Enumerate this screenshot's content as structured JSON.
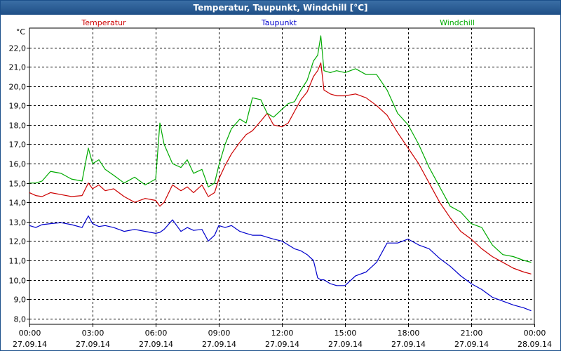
{
  "window": {
    "title": "Temperatur, Taupunkt, Windchill [°C]"
  },
  "chart_data": {
    "type": "line",
    "title": "Temperatur, Taupunkt, Windchill [°C]",
    "ylabel": "°C",
    "ylim": [
      7.7,
      23.0
    ],
    "yticks": [
      "8,0",
      "9,0",
      "10,0",
      "11,0",
      "12,0",
      "13,0",
      "14,0",
      "15,0",
      "16,0",
      "17,0",
      "18,0",
      "19,0",
      "20,0",
      "21,0",
      "22,0"
    ],
    "xlim": [
      0,
      24
    ],
    "xticks": [
      {
        "time": "00:00",
        "date": "27.09.14"
      },
      {
        "time": "03:00",
        "date": "27.09.14"
      },
      {
        "time": "06:00",
        "date": "27.09.14"
      },
      {
        "time": "09:00",
        "date": "27.09.14"
      },
      {
        "time": "12:00",
        "date": "27.09.14"
      },
      {
        "time": "15:00",
        "date": "27.09.14"
      },
      {
        "time": "18:00",
        "date": "27.09.14"
      },
      {
        "time": "21:00",
        "date": "27.09.14"
      },
      {
        "time": "00:00",
        "date": "28.09.14"
      }
    ],
    "grid": true,
    "legend_placement": "top",
    "series": [
      {
        "name": "Temperatur",
        "color": "#cc0000",
        "x": [
          0.0,
          0.3,
          0.6,
          1.0,
          1.5,
          2.0,
          2.5,
          2.8,
          3.0,
          3.3,
          3.6,
          4.0,
          4.5,
          5.0,
          5.5,
          6.0,
          6.2,
          6.4,
          6.8,
          7.2,
          7.5,
          7.8,
          8.2,
          8.5,
          8.8,
          9.0,
          9.3,
          9.6,
          10.0,
          10.3,
          10.6,
          11.0,
          11.3,
          11.6,
          12.0,
          12.3,
          12.6,
          12.9,
          13.2,
          13.5,
          13.7,
          13.85,
          14.0,
          14.3,
          14.6,
          15.0,
          15.5,
          16.0,
          16.5,
          17.0,
          17.5,
          18.0,
          18.5,
          19.0,
          19.5,
          20.0,
          20.5,
          21.0,
          21.5,
          22.0,
          22.5,
          23.0,
          23.5,
          23.85
        ],
        "values": [
          14.5,
          14.35,
          14.3,
          14.5,
          14.4,
          14.3,
          14.35,
          15.0,
          14.7,
          14.9,
          14.6,
          14.7,
          14.3,
          14.0,
          14.2,
          14.1,
          13.8,
          14.0,
          14.9,
          14.6,
          14.8,
          14.5,
          14.9,
          14.3,
          14.5,
          15.2,
          15.9,
          16.5,
          17.1,
          17.5,
          17.7,
          18.2,
          18.6,
          18.0,
          17.9,
          18.1,
          18.7,
          19.3,
          19.7,
          20.5,
          20.8,
          21.2,
          19.8,
          19.6,
          19.5,
          19.5,
          19.6,
          19.4,
          19.0,
          18.5,
          17.6,
          16.8,
          16.0,
          15.0,
          14.0,
          13.2,
          12.5,
          12.1,
          11.6,
          11.2,
          10.9,
          10.6,
          10.4,
          10.3
        ]
      },
      {
        "name": "Taupunkt",
        "color": "#0000cc",
        "x": [
          0.0,
          0.3,
          0.6,
          1.0,
          1.5,
          2.0,
          2.5,
          2.8,
          3.0,
          3.3,
          3.6,
          4.0,
          4.5,
          5.0,
          5.5,
          6.0,
          6.2,
          6.4,
          6.8,
          7.2,
          7.5,
          7.8,
          8.2,
          8.5,
          8.8,
          9.0,
          9.3,
          9.6,
          10.0,
          10.3,
          10.6,
          11.0,
          11.3,
          11.6,
          12.0,
          12.3,
          12.6,
          12.9,
          13.2,
          13.5,
          13.7,
          13.85,
          14.0,
          14.3,
          14.6,
          15.0,
          15.5,
          16.0,
          16.5,
          17.0,
          17.5,
          18.0,
          18.5,
          19.0,
          19.5,
          20.0,
          20.5,
          21.0,
          21.5,
          22.0,
          22.5,
          23.0,
          23.5,
          23.85
        ],
        "values": [
          12.8,
          12.7,
          12.85,
          12.9,
          12.95,
          12.85,
          12.7,
          13.3,
          12.9,
          12.75,
          12.8,
          12.7,
          12.5,
          12.6,
          12.5,
          12.4,
          12.45,
          12.6,
          13.1,
          12.5,
          12.7,
          12.55,
          12.6,
          12.0,
          12.3,
          12.8,
          12.7,
          12.8,
          12.5,
          12.4,
          12.3,
          12.3,
          12.2,
          12.1,
          12.0,
          11.8,
          11.6,
          11.5,
          11.3,
          11.0,
          10.1,
          10.0,
          10.0,
          9.8,
          9.7,
          9.7,
          10.2,
          10.4,
          10.9,
          11.9,
          11.9,
          12.1,
          11.8,
          11.6,
          11.1,
          10.7,
          10.2,
          9.8,
          9.5,
          9.1,
          8.9,
          8.7,
          8.55,
          8.4
        ]
      },
      {
        "name": "Windchill",
        "color": "#00aa00",
        "x": [
          0.0,
          0.3,
          0.6,
          1.0,
          1.5,
          2.0,
          2.5,
          2.8,
          3.0,
          3.3,
          3.6,
          4.0,
          4.5,
          5.0,
          5.5,
          6.0,
          6.2,
          6.4,
          6.8,
          7.2,
          7.5,
          7.8,
          8.2,
          8.5,
          8.8,
          9.0,
          9.3,
          9.6,
          10.0,
          10.3,
          10.6,
          11.0,
          11.3,
          11.6,
          12.0,
          12.3,
          12.6,
          12.9,
          13.2,
          13.5,
          13.7,
          13.85,
          14.0,
          14.3,
          14.6,
          15.0,
          15.5,
          16.0,
          16.5,
          17.0,
          17.5,
          18.0,
          18.5,
          19.0,
          19.5,
          20.0,
          20.5,
          21.0,
          21.5,
          22.0,
          22.5,
          23.0,
          23.5,
          23.85
        ],
        "values": [
          15.0,
          15.0,
          15.1,
          15.6,
          15.5,
          15.2,
          15.1,
          16.8,
          16.0,
          16.2,
          15.7,
          15.4,
          15.0,
          15.3,
          14.9,
          15.2,
          18.1,
          17.0,
          16.0,
          15.8,
          16.2,
          15.5,
          15.7,
          14.8,
          15.0,
          15.9,
          17.0,
          17.8,
          18.3,
          18.1,
          19.4,
          19.3,
          18.6,
          18.4,
          18.8,
          19.1,
          19.2,
          19.8,
          20.3,
          21.3,
          21.6,
          22.6,
          20.8,
          20.7,
          20.8,
          20.7,
          20.9,
          20.6,
          20.6,
          19.8,
          18.6,
          18.0,
          17.0,
          15.8,
          14.8,
          13.8,
          13.5,
          12.9,
          12.7,
          11.8,
          11.3,
          11.2,
          11.0,
          10.9
        ]
      }
    ]
  }
}
